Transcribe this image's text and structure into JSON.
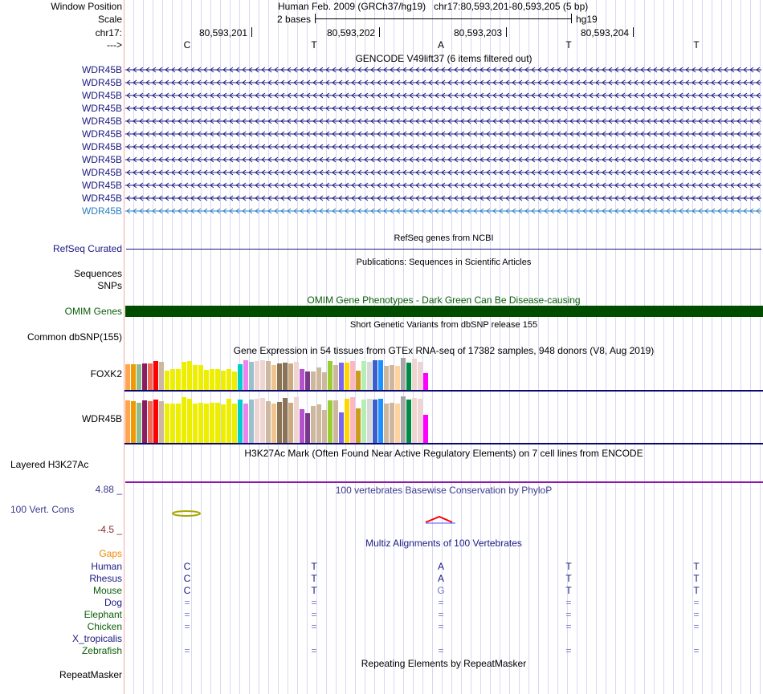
{
  "header": {
    "window_position_label": "Window Position",
    "window_position_value": "Human Feb. 2009 (GRCh37/hg19)   chr17:80,593,201-80,593,205 (5 bp)",
    "scale_label": "Scale",
    "scale_value": "2 bases",
    "assembly": "hg19",
    "chrom_label": "chr17:",
    "strand_label": "--->",
    "positions": [
      "80,593,201",
      "80,593,202",
      "80,593,203",
      "80,593,204"
    ],
    "bases": [
      "C",
      "T",
      "A",
      "T",
      "T"
    ]
  },
  "gencode": {
    "title": "GENCODE V49lift37 (6 items filtered out)",
    "genes": [
      "WDR45B",
      "WDR45B",
      "WDR45B",
      "WDR45B",
      "WDR45B",
      "WDR45B",
      "WDR45B",
      "WDR45B",
      "WDR45B",
      "WDR45B",
      "WDR45B",
      "WDR45B"
    ],
    "colors": [
      "#1a1a80",
      "#1a1a80",
      "#1a1a80",
      "#1a1a80",
      "#1a1a80",
      "#1a1a80",
      "#1a1a80",
      "#1a1a80",
      "#1a1a80",
      "#1a1a80",
      "#1a1a80",
      "#2a7fc0"
    ]
  },
  "refseq": {
    "title": "RefSeq genes from NCBI",
    "label": "RefSeq Curated"
  },
  "publications": {
    "title": "Publications: Sequences in Scientific Articles",
    "label1": "Sequences",
    "label2": "SNPs"
  },
  "omim": {
    "title": "OMIM Gene Phenotypes - Dark Green Can Be Disease-causing",
    "label": "OMIM Genes",
    "color": "#004d00"
  },
  "dbsnp": {
    "title": "Short Genetic Variants from dbSNP release 155",
    "label": "Common dbSNP(155)"
  },
  "gtex": {
    "title": "Gene Expression in 54 tissues from GTEx RNA-seq of 17382 samples, 948 donors (V8, Aug 2019)",
    "genes": [
      {
        "name": "FOXK2",
        "values": [
          81,
          79,
          81,
          83,
          83,
          90,
          88,
          59,
          66,
          64,
          88,
          90,
          78,
          78,
          62,
          66,
          66,
          59,
          64,
          57,
          81,
          93,
          88,
          90,
          93,
          90,
          78,
          83,
          86,
          83,
          88,
          66,
          57,
          57,
          71,
          54,
          90,
          78,
          86,
          86,
          90,
          59,
          90,
          88,
          93,
          93,
          76,
          78,
          76,
          100,
          86,
          98,
          88,
          52
        ]
      },
      {
        "name": "WDR45B",
        "values": [
          92,
          90,
          87,
          92,
          90,
          93,
          90,
          85,
          85,
          84,
          98,
          95,
          84,
          87,
          84,
          87,
          87,
          82,
          95,
          85,
          93,
          84,
          93,
          95,
          96,
          90,
          85,
          88,
          96,
          87,
          98,
          73,
          63,
          80,
          82,
          70,
          92,
          92,
          65,
          95,
          98,
          75,
          93,
          95,
          93,
          95,
          85,
          87,
          85,
          100,
          93,
          96,
          95,
          61
        ]
      }
    ],
    "colors": [
      "#FFA54F",
      "#EE9A00",
      "#8FBC8F",
      "#8B1C62",
      "#EE6A50",
      "#FF0000",
      "#CDB79E",
      "#EEEE00",
      "#EEEE00",
      "#EEEE00",
      "#EEEE00",
      "#EEEE00",
      "#EEEE00",
      "#EEEE00",
      "#EEEE00",
      "#EEEE00",
      "#EEEE00",
      "#EEEE00",
      "#EEEE00",
      "#EEEE00",
      "#00CDCD",
      "#EE82EE",
      "#9AC0CD",
      "#EED5D2",
      "#EED5D2",
      "#CDB79E",
      "#EEC591",
      "#8B7355",
      "#8B7355",
      "#CDAA7D",
      "#EED5D2",
      "#B452CD",
      "#7A378B",
      "#CDB79E",
      "#CDB79E",
      "#CDB79E",
      "#9ACD32",
      "#CDB79E",
      "#7A67EE",
      "#FFD700",
      "#FFB6C1",
      "#CD9B1D",
      "#B4EEB4",
      "#D9D9D9",
      "#3A5FCD",
      "#1E90FF",
      "#CDB79E",
      "#CDB79E",
      "#FFD39B",
      "#A6A6A6",
      "#008B45",
      "#EED5D2",
      "#EED5D2",
      "#FF00FF"
    ]
  },
  "h3k27ac": {
    "title": "H3K27Ac Mark (Often Found Near Active Regulatory Elements) on 7 cell lines from ENCODE",
    "label": "Layered H3K27Ac"
  },
  "phylop": {
    "title": "100 vertebrates Basewise Conservation by PhyloP",
    "label": "100 Vert. Cons",
    "max": "4.88 _",
    "min": "-4.5 _"
  },
  "multiz": {
    "title": "Multiz Alignments of 100 Vertebrates",
    "gaps_label": "Gaps",
    "species": [
      {
        "name": "Human",
        "color": "#1a1a80",
        "bases": [
          "C",
          "T",
          "A",
          "T",
          "T"
        ]
      },
      {
        "name": "Rhesus",
        "color": "#1a1a80",
        "bases": [
          "C",
          "T",
          "A",
          "T",
          "T"
        ]
      },
      {
        "name": "Mouse",
        "color": "#0b5e0b",
        "bases": [
          "C",
          "T",
          "G",
          "T",
          "T"
        ]
      },
      {
        "name": "Dog",
        "color": "#1a1a80",
        "bases": [
          "=",
          "=",
          "=",
          "=",
          "="
        ]
      },
      {
        "name": "Elephant",
        "color": "#0b5e0b",
        "bases": [
          "=",
          "=",
          "=",
          "=",
          "="
        ]
      },
      {
        "name": "Chicken",
        "color": "#0b5e0b",
        "bases": [
          "=",
          "=",
          "=",
          "=",
          "="
        ]
      },
      {
        "name": "X_tropicalis",
        "color": "#1a1a80",
        "bases": [
          "",
          "",
          "",
          "",
          ""
        ]
      },
      {
        "name": "Zebrafish",
        "color": "#0b5e0b",
        "bases": [
          "=",
          "=",
          "=",
          "=",
          "="
        ]
      }
    ]
  },
  "repeatmasker": {
    "title": "Repeating Elements by RepeatMasker",
    "label": "RepeatMasker"
  }
}
